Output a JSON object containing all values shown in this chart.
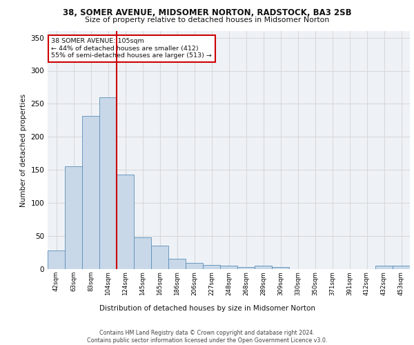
{
  "title1": "38, SOMER AVENUE, MIDSOMER NORTON, RADSTOCK, BA3 2SB",
  "title2": "Size of property relative to detached houses in Midsomer Norton",
  "xlabel": "Distribution of detached houses by size in Midsomer Norton",
  "ylabel": "Number of detached properties",
  "footnote": "Contains HM Land Registry data © Crown copyright and database right 2024.\nContains public sector information licensed under the Open Government Licence v3.0.",
  "annotation_line1": "38 SOMER AVENUE: 105sqm",
  "annotation_line2": "← 44% of detached houses are smaller (412)",
  "annotation_line3": "55% of semi-detached houses are larger (513) →",
  "bar_color": "#c8d8e8",
  "bar_edge_color": "#5b8db8",
  "vline_color": "#cc0000",
  "grid_color": "#d8d8d8",
  "bg_color": "#eef2f7",
  "categories": [
    "42sqm",
    "63sqm",
    "83sqm",
    "104sqm",
    "124sqm",
    "145sqm",
    "165sqm",
    "186sqm",
    "206sqm",
    "227sqm",
    "248sqm",
    "268sqm",
    "289sqm",
    "309sqm",
    "330sqm",
    "350sqm",
    "371sqm",
    "391sqm",
    "412sqm",
    "432sqm",
    "453sqm"
  ],
  "values": [
    28,
    155,
    232,
    260,
    143,
    48,
    35,
    16,
    9,
    6,
    5,
    3,
    5,
    3,
    0,
    0,
    0,
    0,
    0,
    5,
    5
  ],
  "ylim": [
    0,
    360
  ],
  "yticks": [
    0,
    50,
    100,
    150,
    200,
    250,
    300,
    350
  ],
  "vline_x": 3.5
}
